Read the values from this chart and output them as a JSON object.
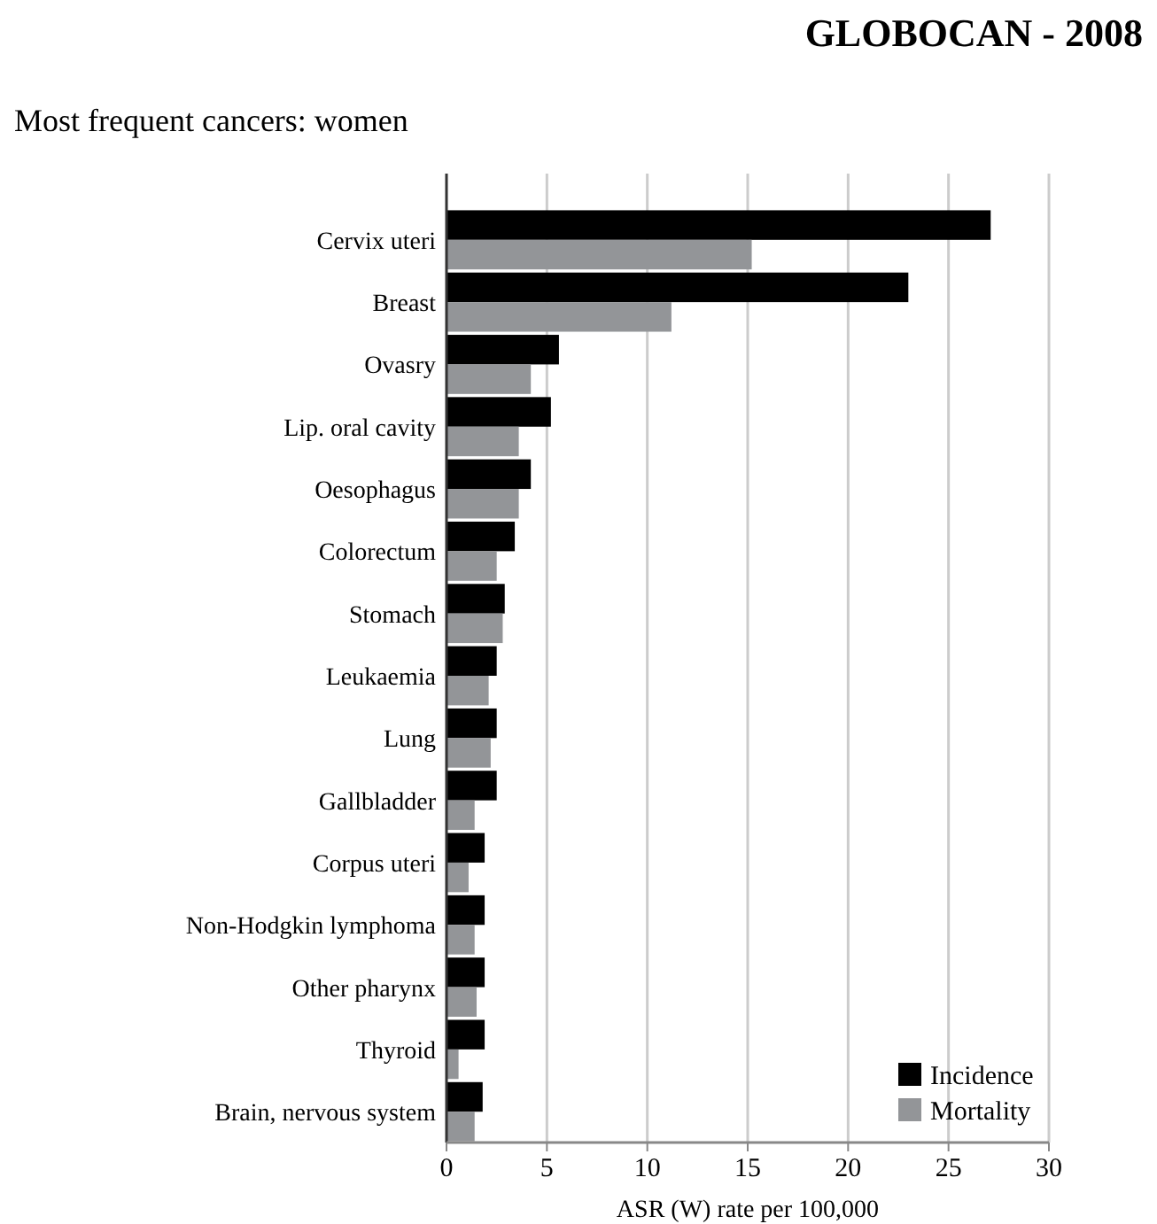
{
  "chart_data": {
    "type": "bar",
    "orientation": "horizontal",
    "title": "GLOBOCAN - 2008",
    "subtitle": "Most frequent cancers: women",
    "xlabel": "ASR (W) rate per 100,000",
    "categories": [
      "Cervix uteri",
      "Breast",
      "Ovasry",
      "Lip. oral cavity",
      "Oesophagus",
      "Colorectum",
      "Stomach",
      "Leukaemia",
      "Lung",
      "Gallbladder",
      "Corpus uteri",
      "Non-Hodgkin lymphoma",
      "Other pharynx",
      "Thyroid",
      "Brain, nervous system"
    ],
    "series": [
      {
        "name": "Incidence",
        "color": "#000000",
        "values": [
          27.1,
          23.0,
          5.6,
          5.2,
          4.2,
          3.4,
          2.9,
          2.5,
          2.5,
          2.5,
          1.9,
          1.9,
          1.9,
          1.9,
          1.8
        ]
      },
      {
        "name": "Mortality",
        "color": "#939598",
        "values": [
          15.2,
          11.2,
          4.2,
          3.6,
          3.6,
          2.5,
          2.8,
          2.1,
          2.2,
          1.4,
          1.1,
          1.4,
          1.5,
          0.6,
          1.4
        ]
      }
    ],
    "xlim": [
      0,
      30
    ],
    "xticks": [
      0,
      5,
      10,
      15,
      20,
      25,
      30
    ],
    "grid": "x",
    "legend": "bottom right"
  }
}
